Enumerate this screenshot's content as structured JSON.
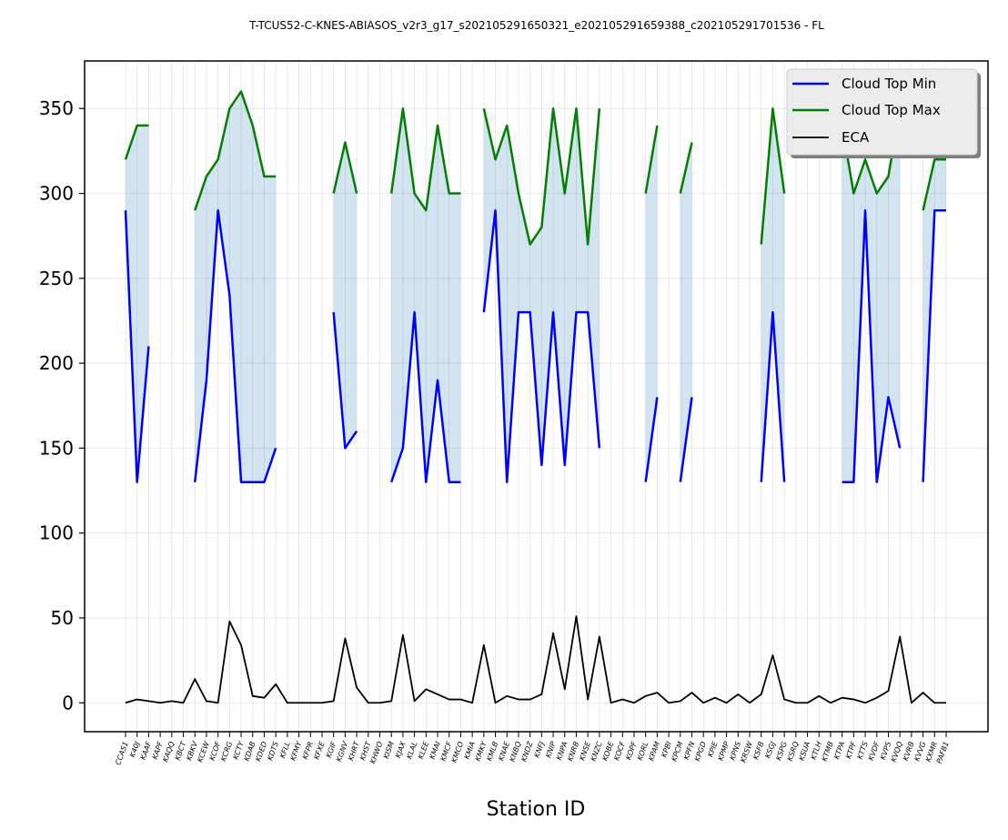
{
  "chart_data": {
    "type": "line",
    "title": "T-TCUS52-C-KNES-ABIASOS_v2r3_g17_s202105291650321_e202105291659388_c202105291701536 - FL",
    "xlabel": "Station ID",
    "ylabel": "",
    "ylim": [
      -17,
      378
    ],
    "yticks": [
      0,
      50,
      100,
      150,
      200,
      250,
      300,
      350
    ],
    "grid": true,
    "legend_position": "top-right",
    "categories": [
      "CCAS1",
      "K40J",
      "KAAF",
      "KAPF",
      "KAQQ",
      "KBCT",
      "KBKV",
      "KCEW",
      "KCOF",
      "KCRG",
      "KCTY",
      "KDAB",
      "KDED",
      "KDTS",
      "KFLL",
      "KFMY",
      "KFPR",
      "KFXE",
      "KGIF",
      "KGNV",
      "KHRT",
      "KHST",
      "KHWO",
      "KISM",
      "KJAX",
      "KLAL",
      "KLEE",
      "KMAI",
      "KMCF",
      "KMCO",
      "KMIA",
      "KMKY",
      "KMLB",
      "KNAE",
      "KNBQ",
      "KNDZ",
      "KNFJ",
      "KNIP",
      "KNPA",
      "KNRB",
      "KNSE",
      "KNZC",
      "KOBE",
      "KOCF",
      "KOPF",
      "KORL",
      "KPAM",
      "KPBI",
      "KPCM",
      "KPFN",
      "KPGD",
      "KPIE",
      "KPMP",
      "KPNS",
      "KRSW",
      "KSFB",
      "KSGJ",
      "KSPG",
      "KSRQ",
      "KSUA",
      "KTLH",
      "KTMB",
      "KTPA",
      "KTPF",
      "KTTS",
      "KVDF",
      "KVPS",
      "KVQQ",
      "KVRB",
      "KVVG",
      "KXMR",
      "PAFB1"
    ],
    "series": [
      {
        "name": "Cloud Top Min",
        "color": "#0000ff",
        "values": [
          290,
          130,
          210,
          null,
          null,
          null,
          130,
          190,
          290,
          240,
          130,
          130,
          130,
          150,
          null,
          null,
          null,
          null,
          230,
          150,
          160,
          null,
          null,
          130,
          150,
          230,
          130,
          190,
          130,
          130,
          null,
          230,
          290,
          130,
          230,
          230,
          140,
          230,
          140,
          230,
          230,
          150,
          null,
          null,
          null,
          130,
          180,
          null,
          130,
          180,
          null,
          null,
          null,
          null,
          null,
          130,
          230,
          130,
          null,
          null,
          null,
          null,
          130,
          130,
          290,
          130,
          180,
          150,
          null,
          130,
          290,
          290
        ]
      },
      {
        "name": "Cloud Top Max",
        "color": "#008000",
        "values": [
          320,
          340,
          340,
          null,
          null,
          null,
          290,
          310,
          320,
          350,
          360,
          340,
          310,
          310,
          null,
          null,
          null,
          null,
          300,
          330,
          300,
          null,
          null,
          300,
          350,
          300,
          290,
          340,
          300,
          300,
          null,
          350,
          320,
          340,
          300,
          270,
          280,
          350,
          300,
          350,
          270,
          350,
          null,
          null,
          null,
          300,
          340,
          null,
          300,
          330,
          null,
          null,
          null,
          null,
          null,
          270,
          350,
          300,
          null,
          null,
          null,
          null,
          340,
          300,
          320,
          300,
          310,
          350,
          null,
          290,
          320,
          320
        ]
      },
      {
        "name": "ECA",
        "color": "#000000",
        "values": [
          0,
          2,
          1,
          0,
          1,
          0,
          14,
          1,
          0,
          48,
          34,
          4,
          3,
          11,
          0,
          0,
          0,
          0,
          1,
          38,
          9,
          0,
          0,
          1,
          40,
          1,
          8,
          5,
          2,
          2,
          0,
          34,
          0,
          4,
          2,
          2,
          5,
          41,
          8,
          51,
          2,
          39,
          0,
          2,
          0,
          4,
          6,
          0,
          1,
          6,
          0,
          3,
          0,
          5,
          0,
          5,
          28,
          2,
          0,
          0,
          4,
          0,
          3,
          2,
          0,
          3,
          7,
          39,
          0,
          6,
          0,
          0
        ]
      }
    ]
  }
}
